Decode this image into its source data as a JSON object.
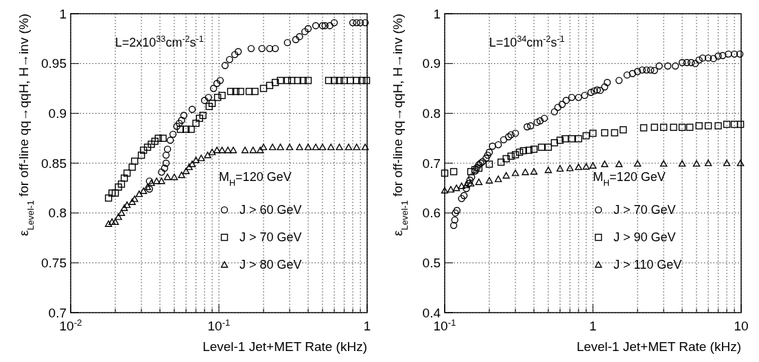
{
  "chart_data": [
    {
      "type": "scatter",
      "xlabel": "Level-1 Jet+MET Rate (kHz)",
      "ylabel": "ε$_{Level-1}$ for off-line qq→qqH, H→inv (%)",
      "log": "x",
      "grid": true,
      "legend": "bottom right",
      "legend_title": "M$_{H}$=120 GeV",
      "annotations": [
        "L=2x10$^{33}$cm$^{-2}$s$^{-1}$"
      ],
      "xlim": [
        0.01,
        1
      ],
      "ylim": [
        0.7,
        1
      ],
      "xticks": [
        {
          "value": 0.01,
          "label": "10$^{-2}$"
        },
        {
          "value": 0.02,
          "label": null
        },
        {
          "value": 0.03,
          "label": null
        },
        {
          "value": 0.04,
          "label": null
        },
        {
          "value": 0.05,
          "label": null
        },
        {
          "value": 0.06,
          "label": null
        },
        {
          "value": 0.07,
          "label": null
        },
        {
          "value": 0.08,
          "label": null
        },
        {
          "value": 0.09,
          "label": null
        },
        {
          "value": 0.1,
          "label": "10$^{-1}$"
        },
        {
          "value": 0.2,
          "label": null
        },
        {
          "value": 0.3,
          "label": null
        },
        {
          "value": 0.4,
          "label": null
        },
        {
          "value": 0.5,
          "label": null
        },
        {
          "value": 0.6,
          "label": null
        },
        {
          "value": 0.7,
          "label": null
        },
        {
          "value": 0.8,
          "label": null
        },
        {
          "value": 0.9,
          "label": null
        },
        {
          "value": 1,
          "label": "1"
        }
      ],
      "yticks": [
        0.7,
        0.75,
        0.8,
        0.85,
        0.9,
        0.95,
        1
      ],
      "series": [
        {
          "name": "J > 60 GeV",
          "color": "#000000",
          "marker": "circle",
          "x": [
            0.034,
            0.034,
            0.041,
            0.043,
            0.044,
            0.044,
            0.045,
            0.047,
            0.049,
            0.052,
            0.054,
            0.056,
            0.058,
            0.066,
            0.08,
            0.085,
            0.092,
            0.097,
            0.102,
            0.11,
            0.118,
            0.128,
            0.135,
            0.165,
            0.195,
            0.22,
            0.24,
            0.29,
            0.33,
            0.35,
            0.38,
            0.4,
            0.45,
            0.5,
            0.52,
            0.56,
            0.6,
            0.8,
            0.85,
            0.9,
            0.97
          ],
          "values": [
            0.824,
            0.832,
            0.841,
            0.845,
            0.85,
            0.858,
            0.864,
            0.873,
            0.879,
            0.887,
            0.89,
            0.893,
            0.898,
            0.904,
            0.913,
            0.916,
            0.925,
            0.93,
            0.933,
            0.948,
            0.954,
            0.959,
            0.962,
            0.965,
            0.965,
            0.965,
            0.965,
            0.971,
            0.974,
            0.977,
            0.982,
            0.985,
            0.988,
            0.988,
            0.988,
            0.988,
            0.991,
            0.991,
            0.991,
            0.991,
            0.991
          ]
        },
        {
          "name": "J > 70 GeV",
          "color": "#000000",
          "marker": "square",
          "x": [
            0.018,
            0.019,
            0.02,
            0.021,
            0.022,
            0.023,
            0.024,
            0.026,
            0.027,
            0.03,
            0.031,
            0.033,
            0.035,
            0.037,
            0.039,
            0.042,
            0.055,
            0.06,
            0.065,
            0.07,
            0.074,
            0.078,
            0.086,
            0.09,
            0.098,
            0.105,
            0.12,
            0.13,
            0.14,
            0.16,
            0.175,
            0.2,
            0.22,
            0.24,
            0.26,
            0.29,
            0.31,
            0.34,
            0.37,
            0.4,
            0.55,
            0.6,
            0.65,
            0.7,
            0.77,
            0.85,
            0.92,
            0.99
          ],
          "values": [
            0.815,
            0.82,
            0.82,
            0.826,
            0.829,
            0.835,
            0.84,
            0.846,
            0.852,
            0.858,
            0.863,
            0.866,
            0.869,
            0.872,
            0.875,
            0.875,
            0.884,
            0.884,
            0.884,
            0.89,
            0.895,
            0.898,
            0.907,
            0.91,
            0.916,
            0.918,
            0.922,
            0.922,
            0.922,
            0.922,
            0.922,
            0.925,
            0.928,
            0.931,
            0.933,
            0.933,
            0.933,
            0.933,
            0.933,
            0.933,
            0.933,
            0.933,
            0.933,
            0.933,
            0.933,
            0.933,
            0.933,
            0.933
          ]
        },
        {
          "name": "J > 80 GeV",
          "color": "#000000",
          "marker": "triangle",
          "x": [
            0.018,
            0.019,
            0.02,
            0.021,
            0.022,
            0.023,
            0.024,
            0.026,
            0.027,
            0.029,
            0.031,
            0.033,
            0.035,
            0.038,
            0.041,
            0.045,
            0.05,
            0.056,
            0.06,
            0.063,
            0.066,
            0.07,
            0.076,
            0.084,
            0.09,
            0.097,
            0.105,
            0.115,
            0.125,
            0.15,
            0.17,
            0.19,
            0.2,
            0.23,
            0.26,
            0.3,
            0.35,
            0.4,
            0.45,
            0.5,
            0.57,
            0.65,
            0.75,
            0.85,
            0.97
          ],
          "values": [
            0.789,
            0.791,
            0.791,
            0.796,
            0.8,
            0.805,
            0.808,
            0.811,
            0.814,
            0.819,
            0.822,
            0.826,
            0.83,
            0.832,
            0.832,
            0.836,
            0.836,
            0.838,
            0.842,
            0.846,
            0.849,
            0.853,
            0.855,
            0.858,
            0.861,
            0.863,
            0.863,
            0.863,
            0.863,
            0.863,
            0.863,
            0.863,
            0.866,
            0.866,
            0.866,
            0.866,
            0.866,
            0.866,
            0.866,
            0.866,
            0.866,
            0.866,
            0.866,
            0.866,
            0.866
          ]
        }
      ]
    },
    {
      "type": "scatter",
      "xlabel": "Level-1 Jet+MET Rate (kHz)",
      "ylabel": "ε$_{Level-1}$ for off-line qq→qqH, H→inv (%)",
      "log": "x",
      "grid": true,
      "legend": "bottom right",
      "legend_title": "M$_{H}$=120 GeV",
      "annotations": [
        "L=10$^{34}$cm$^{-2}$s$^{-1}$"
      ],
      "xlim": [
        0.1,
        10
      ],
      "ylim": [
        0.4,
        1
      ],
      "xticks": [
        {
          "value": 0.1,
          "label": "10$^{-1}$"
        },
        {
          "value": 0.2,
          "label": null
        },
        {
          "value": 0.3,
          "label": null
        },
        {
          "value": 0.4,
          "label": null
        },
        {
          "value": 0.5,
          "label": null
        },
        {
          "value": 0.6,
          "label": null
        },
        {
          "value": 0.7,
          "label": null
        },
        {
          "value": 0.8,
          "label": null
        },
        {
          "value": 0.9,
          "label": null
        },
        {
          "value": 1,
          "label": "1"
        },
        {
          "value": 2,
          "label": null
        },
        {
          "value": 3,
          "label": null
        },
        {
          "value": 4,
          "label": null
        },
        {
          "value": 5,
          "label": null
        },
        {
          "value": 6,
          "label": null
        },
        {
          "value": 7,
          "label": null
        },
        {
          "value": 8,
          "label": null
        },
        {
          "value": 9,
          "label": null
        },
        {
          "value": 10,
          "label": "10"
        }
      ],
      "yticks": [
        0.4,
        0.5,
        0.6,
        0.7,
        0.8,
        0.9,
        1
      ],
      "series": [
        {
          "name": "J > 70 GeV",
          "color": "#000000",
          "marker": "circle",
          "x": [
            0.115,
            0.117,
            0.118,
            0.121,
            0.13,
            0.135,
            0.14,
            0.145,
            0.148,
            0.152,
            0.16,
            0.165,
            0.17,
            0.175,
            0.18,
            0.19,
            0.195,
            0.2,
            0.21,
            0.23,
            0.25,
            0.27,
            0.28,
            0.3,
            0.36,
            0.38,
            0.42,
            0.44,
            0.47,
            0.55,
            0.58,
            0.62,
            0.66,
            0.72,
            0.8,
            0.88,
            0.97,
            1.02,
            1.07,
            1.12,
            1.2,
            1.25,
            1.5,
            1.7,
            1.85,
            2.0,
            2.15,
            2.3,
            2.45,
            2.6,
            2.8,
            3.2,
            3.6,
            4.0,
            4.3,
            4.6,
            4.9,
            5.2,
            5.5,
            6.0,
            6.5,
            7.0,
            7.5,
            8.2,
            9.0,
            9.8
          ],
          "values": [
            0.575,
            0.586,
            0.6,
            0.605,
            0.629,
            0.635,
            0.649,
            0.659,
            0.666,
            0.672,
            0.684,
            0.691,
            0.697,
            0.7,
            0.703,
            0.71,
            0.716,
            0.722,
            0.734,
            0.737,
            0.747,
            0.753,
            0.757,
            0.76,
            0.773,
            0.775,
            0.782,
            0.785,
            0.79,
            0.803,
            0.812,
            0.818,
            0.826,
            0.832,
            0.832,
            0.836,
            0.842,
            0.845,
            0.847,
            0.846,
            0.853,
            0.862,
            0.866,
            0.877,
            0.88,
            0.884,
            0.887,
            0.887,
            0.887,
            0.886,
            0.895,
            0.895,
            0.895,
            0.902,
            0.902,
            0.902,
            0.9,
            0.907,
            0.911,
            0.911,
            0.91,
            0.915,
            0.916,
            0.919,
            0.919,
            0.919
          ]
        },
        {
          "name": "J > 90 GeV",
          "color": "#000000",
          "marker": "square",
          "x": [
            0.1,
            0.115,
            0.15,
            0.16,
            0.17,
            0.2,
            0.24,
            0.26,
            0.28,
            0.3,
            0.32,
            0.34,
            0.37,
            0.4,
            0.45,
            0.5,
            0.55,
            0.6,
            0.65,
            0.72,
            0.8,
            0.9,
            1.0,
            1.2,
            1.4,
            1.6,
            2.2,
            2.6,
            3.0,
            3.5,
            4.0,
            4.5,
            5.2,
            6.0,
            7.0,
            8.0,
            9.0,
            9.9
          ],
          "values": [
            0.68,
            0.683,
            0.683,
            0.687,
            0.69,
            0.698,
            0.702,
            0.709,
            0.714,
            0.717,
            0.722,
            0.725,
            0.726,
            0.728,
            0.732,
            0.732,
            0.741,
            0.746,
            0.749,
            0.749,
            0.749,
            0.755,
            0.76,
            0.761,
            0.761,
            0.767,
            0.771,
            0.772,
            0.772,
            0.772,
            0.772,
            0.772,
            0.775,
            0.775,
            0.775,
            0.778,
            0.778,
            0.778
          ]
        },
        {
          "name": "J > 110 GeV",
          "color": "#000000",
          "marker": "triangle",
          "x": [
            0.1,
            0.11,
            0.12,
            0.13,
            0.14,
            0.15,
            0.17,
            0.2,
            0.23,
            0.26,
            0.3,
            0.35,
            0.4,
            0.5,
            0.6,
            0.7,
            0.8,
            0.9,
            1.0,
            1.2,
            1.5,
            2.0,
            3.0,
            4.0,
            5.0,
            6.0,
            8.0,
            9.9
          ],
          "values": [
            0.645,
            0.647,
            0.65,
            0.654,
            0.656,
            0.659,
            0.662,
            0.665,
            0.668,
            0.675,
            0.68,
            0.682,
            0.683,
            0.686,
            0.689,
            0.69,
            0.692,
            0.693,
            0.695,
            0.698,
            0.698,
            0.699,
            0.699,
            0.699,
            0.699,
            0.7,
            0.7,
            0.7
          ]
        }
      ]
    }
  ]
}
